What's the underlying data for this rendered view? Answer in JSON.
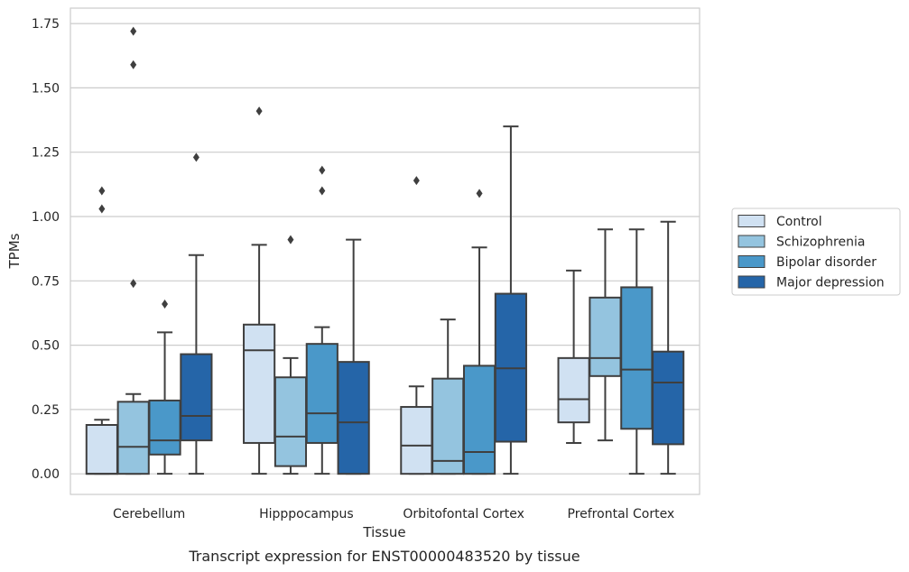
{
  "chart_data": {
    "type": "boxplot",
    "title": "Transcript expression for ENST00000483520 by tissue",
    "xlabel": "Tissue",
    "ylabel": "TPMs",
    "ylim": [
      -0.08,
      1.81
    ],
    "yticks": [
      0.0,
      0.25,
      0.5,
      0.75,
      1.0,
      1.25,
      1.5,
      1.75
    ],
    "ytick_labels": [
      "0.00",
      "0.25",
      "0.50",
      "0.75",
      "1.00",
      "1.25",
      "1.50",
      "1.75"
    ],
    "grid": "horizontal",
    "legend_position": "right",
    "categories": [
      "Cerebellum",
      "Hipppocampus",
      "Orbitofontal Cortex",
      "Prefrontal Cortex"
    ],
    "series": [
      {
        "name": "Control",
        "color": "#d0e1f2",
        "boxes": [
          {
            "whislo": 0.0,
            "q1": 0.0,
            "med": 0.0,
            "q3": 0.19,
            "whishi": 0.21,
            "fliers": [
              1.1,
              1.03
            ]
          },
          {
            "whislo": 0.0,
            "q1": 0.12,
            "med": 0.48,
            "q3": 0.58,
            "whishi": 0.89,
            "fliers": [
              1.41
            ]
          },
          {
            "whislo": 0.0,
            "q1": 0.0,
            "med": 0.11,
            "q3": 0.26,
            "whishi": 0.34,
            "fliers": [
              1.14
            ]
          },
          {
            "whislo": 0.12,
            "q1": 0.2,
            "med": 0.29,
            "q3": 0.45,
            "whishi": 0.79,
            "fliers": []
          }
        ]
      },
      {
        "name": "Schizophrenia",
        "color": "#94c4df",
        "boxes": [
          {
            "whislo": 0.0,
            "q1": 0.0,
            "med": 0.105,
            "q3": 0.28,
            "whishi": 0.31,
            "fliers": [
              1.72,
              1.59,
              0.74
            ]
          },
          {
            "whislo": 0.0,
            "q1": 0.03,
            "med": 0.145,
            "q3": 0.375,
            "whishi": 0.45,
            "fliers": [
              0.91
            ]
          },
          {
            "whislo": 0.0,
            "q1": 0.0,
            "med": 0.05,
            "q3": 0.37,
            "whishi": 0.6,
            "fliers": []
          },
          {
            "whislo": 0.13,
            "q1": 0.38,
            "med": 0.45,
            "q3": 0.685,
            "whishi": 0.95,
            "fliers": []
          }
        ]
      },
      {
        "name": "Bipolar disorder",
        "color": "#4a98c9",
        "boxes": [
          {
            "whislo": 0.0,
            "q1": 0.075,
            "med": 0.13,
            "q3": 0.285,
            "whishi": 0.55,
            "fliers": [
              0.66
            ]
          },
          {
            "whislo": 0.0,
            "q1": 0.12,
            "med": 0.235,
            "q3": 0.505,
            "whishi": 0.57,
            "fliers": [
              1.18,
              1.1
            ]
          },
          {
            "whislo": 0.0,
            "q1": 0.0,
            "med": 0.085,
            "q3": 0.42,
            "whishi": 0.88,
            "fliers": [
              1.09
            ]
          },
          {
            "whislo": 0.0,
            "q1": 0.175,
            "med": 0.405,
            "q3": 0.725,
            "whishi": 0.95,
            "fliers": []
          }
        ]
      },
      {
        "name": "Major depression",
        "color": "#2565a8",
        "boxes": [
          {
            "whislo": 0.0,
            "q1": 0.13,
            "med": 0.225,
            "q3": 0.465,
            "whishi": 0.85,
            "fliers": [
              1.23
            ]
          },
          {
            "whislo": 0.0,
            "q1": 0.0,
            "med": 0.2,
            "q3": 0.435,
            "whishi": 0.91,
            "fliers": []
          },
          {
            "whislo": 0.0,
            "q1": 0.125,
            "med": 0.41,
            "q3": 0.7,
            "whishi": 1.35,
            "fliers": []
          },
          {
            "whislo": 0.0,
            "q1": 0.115,
            "med": 0.355,
            "q3": 0.475,
            "whishi": 0.98,
            "fliers": []
          }
        ]
      }
    ]
  }
}
